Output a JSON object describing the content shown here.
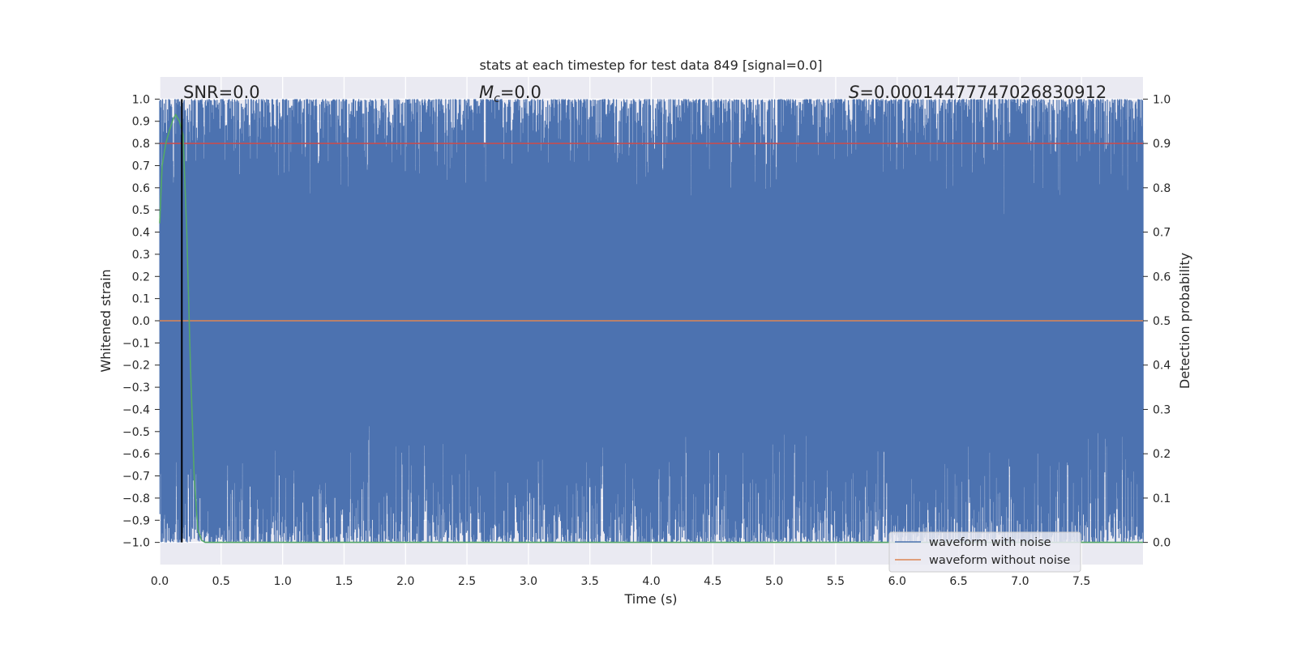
{
  "chart_data": {
    "type": "line",
    "title": "stats at each timestep for test data 849 [signal=0.0]",
    "xlabel": "Time (s)",
    "ylabel": "Whitened strain",
    "ylabel_right": "Detection probability",
    "xlim": [
      0.0,
      8.0
    ],
    "ylim": [
      -1.1,
      1.1
    ],
    "ylim_right": [
      -0.05,
      1.05
    ],
    "x_ticks": [
      "0.0",
      "0.5",
      "1.0",
      "1.5",
      "2.0",
      "2.5",
      "3.0",
      "3.5",
      "4.0",
      "4.5",
      "5.0",
      "5.5",
      "6.0",
      "6.5",
      "7.0",
      "7.5"
    ],
    "y_ticks": [
      "1.0",
      "0.9",
      "0.8",
      "0.7",
      "0.6",
      "0.5",
      "0.4",
      "0.3",
      "0.2",
      "0.1",
      "0.0",
      "−0.1",
      "−0.2",
      "−0.3",
      "−0.4",
      "−0.5",
      "−0.6",
      "−0.7",
      "−0.8",
      "−0.9",
      "−1.0"
    ],
    "y_right_ticks": [
      "1.0",
      "0.9",
      "0.8",
      "0.7",
      "0.6",
      "0.5",
      "0.4",
      "0.3",
      "0.2",
      "0.1",
      "0.0"
    ],
    "grid": true,
    "legend_position": "lower-right",
    "annotations": {
      "snr": "SNR=0.0",
      "mc_symbol": "M",
      "mc_sub": "c",
      "mc_value": "=0.0",
      "s_symbol": "S",
      "s_value": "=0.00014477747026830912"
    },
    "vline_x": 0.18,
    "series": [
      {
        "name": "waveform with noise",
        "color": "#4c72b0",
        "axis": "left",
        "description_values": {
          "x_start": 0.0,
          "x_end": 8.0,
          "min": -1.0,
          "max": 1.0
        }
      },
      {
        "name": "waveform without noise",
        "color": "#dd8452",
        "axis": "left",
        "x": [
          0.0,
          8.0
        ],
        "y": [
          0.0,
          0.0
        ]
      },
      {
        "name": "",
        "color": "#c44e52",
        "axis": "right",
        "x": [
          0.0,
          8.0
        ],
        "y": [
          0.9,
          0.9
        ]
      },
      {
        "name": "",
        "color": "#55a868",
        "axis": "right",
        "x": [
          0.0,
          0.02,
          0.05,
          0.08,
          0.11,
          0.13,
          0.16,
          0.19,
          0.22,
          0.25,
          0.28,
          0.31,
          0.34,
          0.37,
          0.4,
          1.0,
          2.0,
          3.0,
          4.0,
          5.0,
          6.0,
          7.0,
          8.0
        ],
        "y": [
          0.72,
          0.85,
          0.9,
          0.93,
          0.955,
          0.965,
          0.95,
          0.92,
          0.7,
          0.4,
          0.15,
          0.03,
          0.005,
          0.0,
          0.0,
          0.0,
          0.0,
          0.0,
          0.0,
          0.0,
          0.0,
          0.0,
          0.0
        ]
      }
    ]
  }
}
